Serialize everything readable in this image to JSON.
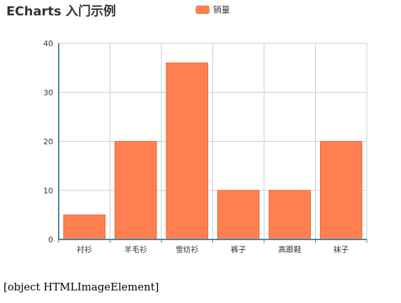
{
  "page": {
    "footer_text": "[object HTMLImageElement]"
  },
  "chart_data": {
    "type": "bar",
    "title": "ECharts 入门示例",
    "categories": [
      "衬衫",
      "羊毛衫",
      "雪纺衫",
      "裤子",
      "高跟鞋",
      "袜子"
    ],
    "series": [
      {
        "name": "销量",
        "values": [
          5,
          20,
          36,
          10,
          10,
          20
        ]
      }
    ],
    "ylim": [
      0,
      40
    ],
    "yticks": [
      0,
      10,
      20,
      30,
      40
    ],
    "grid": true,
    "legend_position": "top-center",
    "colors": {
      "bar": "#ff7f50",
      "bar_border": "#e8683a",
      "axis": "#48889e",
      "grid": "#cccccc",
      "label": "#333333"
    }
  }
}
